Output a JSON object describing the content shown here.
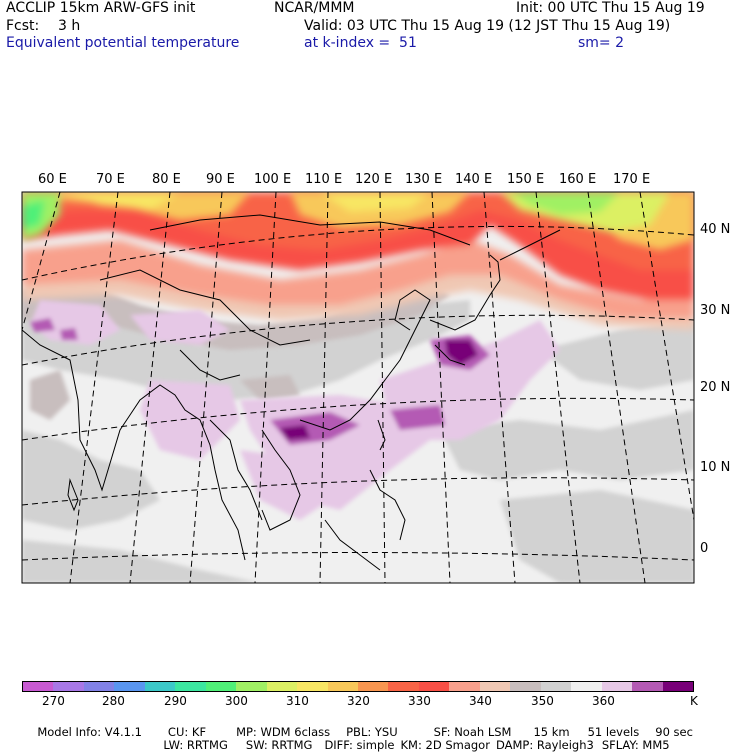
{
  "header": {
    "title_line": "ACCLIP 15km ARW-GFS init",
    "forecast_label": "Fcst:",
    "forecast_value": "3 h",
    "field_name": "Equivalent potential temperature",
    "org": "NCAR/MMM",
    "init": "Init: 00 UTC Thu 15 Aug 19",
    "valid": "Valid: 03 UTC Thu 15 Aug 19 (12 JST Thu 15 Aug 19)",
    "level": "at k-index =  51",
    "smoothing": "sm= 2"
  },
  "map": {
    "longitude_labels": [
      "60 E",
      "70 E",
      "80 E",
      "90 E",
      "100 E",
      "110 E",
      "120 E",
      "130 E",
      "140 E",
      "150 E",
      "160 E",
      "170 E"
    ],
    "latitude_labels": [
      "40 N",
      "30 N",
      "20 N",
      "10 N",
      "0"
    ]
  },
  "colorbar": {
    "colors": [
      "#c85ad2",
      "#a878e6",
      "#8282e6",
      "#5a96f0",
      "#3cc8c8",
      "#3ce6a0",
      "#50f078",
      "#a0f064",
      "#dcf064",
      "#f8e664",
      "#f8c85a",
      "#f89650",
      "#f86446",
      "#f85046",
      "#f8a08c",
      "#f0c8b4",
      "#c8bebe",
      "#d2d2d2",
      "#f0f0f0",
      "#e6c8e6",
      "#b45ab4",
      "#780078"
    ],
    "labels": [
      "270",
      "280",
      "290",
      "300",
      "310",
      "320",
      "330",
      "340",
      "350",
      "360"
    ],
    "unit": "K"
  },
  "footer": {
    "line1": [
      "Model Info: V4.1.1",
      "CU: KF",
      "MP: WDM 6class",
      "PBL: YSU",
      "SF: Noah LSM",
      "15 km",
      "51 levels",
      "90 sec"
    ],
    "line2": [
      "LW: RRTMG",
      "SW: RRTMG",
      "DIFF: simple",
      "KM: 2D Smagor",
      "DAMP: Rayleigh3",
      "SFLAY: MM5"
    ]
  }
}
